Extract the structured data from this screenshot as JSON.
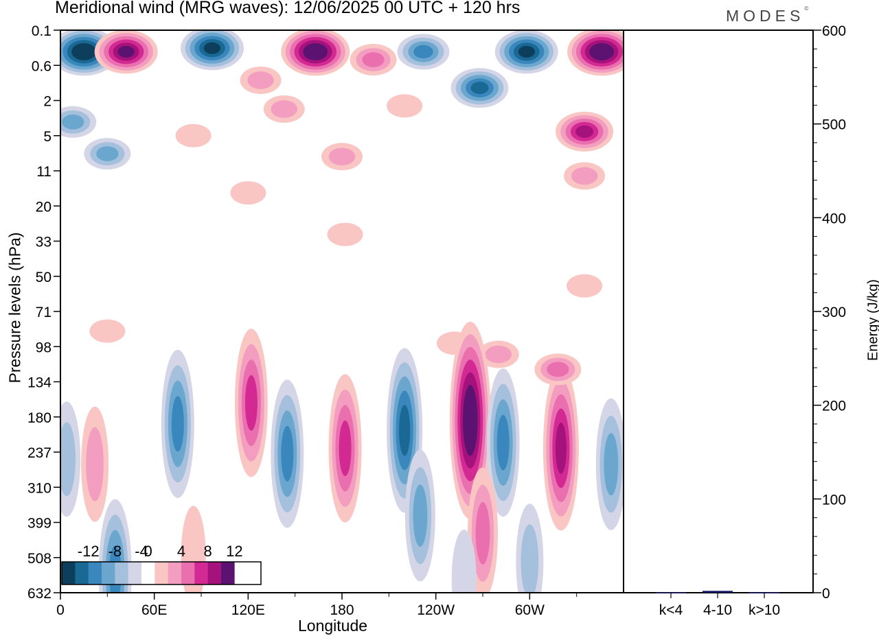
{
  "title": "Meridional wind (MRG waves):  12/06/2025  00 UTC  + 120 hrs",
  "brand": "MODES",
  "brand_mark": "©",
  "colors": {
    "neg": [
      "#0d3e5c",
      "#1a6894",
      "#3987bd",
      "#6aa6ce",
      "#a4c0dc",
      "#d4d6e8"
    ],
    "pos": [
      "#f9c6c4",
      "#f39ec0",
      "#ea6fae",
      "#d22992",
      "#a6127c",
      "#5c1271"
    ],
    "energy_bar": "#1c1a6a"
  },
  "chart_data": [
    {
      "type": "heatmap",
      "title": "Meridional wind (MRG waves):  12/06/2025  00 UTC  + 120 hrs",
      "xlabel": "Longitude",
      "ylabel": "Pressure levels (hPa)",
      "x_ticks": [
        "0",
        "60E",
        "120E",
        "180",
        "120W",
        "60W"
      ],
      "y_ticks": [
        "0.1",
        "0.6",
        "2",
        "5",
        "11",
        "20",
        "33",
        "50",
        "71",
        "98",
        "134",
        "180",
        "237",
        "310",
        "399",
        "508",
        "632"
      ],
      "colorbar_ticks": [
        "-12",
        "-8",
        "-4",
        "0",
        "4",
        "8",
        "12"
      ],
      "colorbar_levels": [
        -14,
        -12,
        -10,
        -8,
        -6,
        -4,
        -2,
        2,
        4,
        6,
        8,
        10,
        12,
        14
      ],
      "features": [
        {
          "lon": 15,
          "lev": 0.3,
          "v": -14
        },
        {
          "lon": 42,
          "lev": 0.3,
          "v": 13
        },
        {
          "lon": 97,
          "lev": 0.25,
          "v": -13
        },
        {
          "lon": 163,
          "lev": 0.3,
          "v": 15
        },
        {
          "lon": 200,
          "lev": 0.45,
          "v": 6
        },
        {
          "lon": 232,
          "lev": 0.3,
          "v": -9
        },
        {
          "lon": 298,
          "lev": 0.3,
          "v": -13
        },
        {
          "lon": 346,
          "lev": 0.3,
          "v": 14
        },
        {
          "lon": 268,
          "lev": 1.3,
          "v": -10
        },
        {
          "lon": 128,
          "lev": 1.0,
          "v": 5
        },
        {
          "lon": 143,
          "lev": 2.5,
          "v": 4
        },
        {
          "lon": 220,
          "lev": 2.3,
          "v": 3
        },
        {
          "lon": 335,
          "lev": 4.5,
          "v": 10
        },
        {
          "lon": 8,
          "lev": 3.5,
          "v": -6
        },
        {
          "lon": 30,
          "lev": 7.5,
          "v": -7
        },
        {
          "lon": 180,
          "lev": 8,
          "v": 4
        },
        {
          "lon": 85,
          "lev": 5,
          "v": 2
        },
        {
          "lon": 335,
          "lev": 12,
          "v": 5
        },
        {
          "lon": 182,
          "lev": 30,
          "v": 2
        },
        {
          "lon": 120,
          "lev": 16,
          "v": 2
        },
        {
          "lon": 335,
          "lev": 55,
          "v": 2
        },
        {
          "lon": 30,
          "lev": 85,
          "v": 2
        },
        {
          "lon": 280,
          "lev": 105,
          "v": 5
        },
        {
          "lon": 252,
          "lev": 95,
          "v": 2
        },
        {
          "lon": 75,
          "lev": 190,
          "v": -9
        },
        {
          "lon": 122,
          "lev": 160,
          "v": 8
        },
        {
          "lon": 145,
          "lev": 240,
          "v": -8
        },
        {
          "lon": 182,
          "lev": 230,
          "v": 8
        },
        {
          "lon": 220,
          "lev": 200,
          "v": -10
        },
        {
          "lon": 262,
          "lev": 185,
          "v": 14
        },
        {
          "lon": 283,
          "lev": 220,
          "v": -9
        },
        {
          "lon": 320,
          "lev": 230,
          "v": 11
        },
        {
          "lon": 318,
          "lev": 120,
          "v": 7
        },
        {
          "lon": 352,
          "lev": 260,
          "v": -6
        },
        {
          "lon": 4,
          "lev": 250,
          "v": -4
        },
        {
          "lon": 22,
          "lev": 260,
          "v": 4
        },
        {
          "lon": 35,
          "lev": 560,
          "v": -9
        },
        {
          "lon": 85,
          "lev": 500,
          "v": 3
        },
        {
          "lon": 230,
          "lev": 380,
          "v": -6
        },
        {
          "lon": 270,
          "lev": 430,
          "v": 6
        },
        {
          "lon": 300,
          "lev": 520,
          "v": -5
        },
        {
          "lon": 258,
          "lev": 580,
          "v": -3
        }
      ]
    },
    {
      "type": "bar",
      "ylabel": "Energy (J/kg)",
      "categories": [
        "k<4",
        "4-10",
        "k>10"
      ],
      "values": [
        0.5,
        2,
        0.5
      ],
      "ylim": [
        0,
        600
      ],
      "y_ticks": [
        "0",
        "100",
        "200",
        "300",
        "400",
        "500",
        "600"
      ]
    }
  ]
}
